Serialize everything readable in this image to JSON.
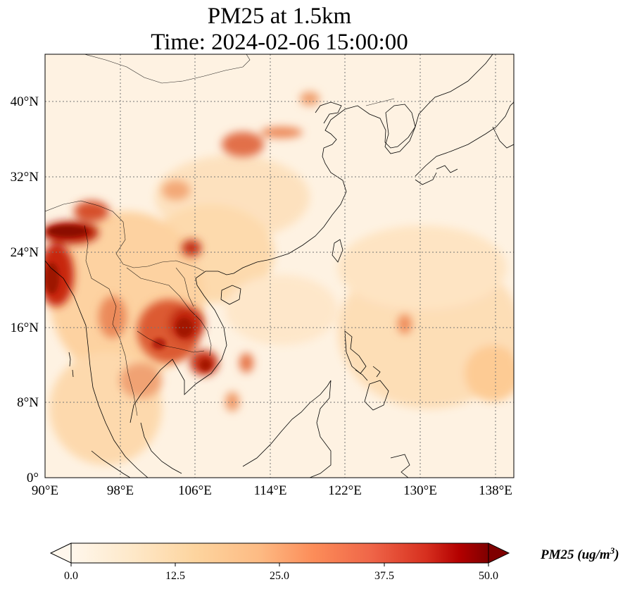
{
  "title": {
    "line1": "PM25 at 1.5km",
    "line2": "Time: 2024-02-06 15:00:00"
  },
  "map": {
    "type": "filled-contour-map",
    "variable": "PM25",
    "level": "1.5km",
    "time": "2024-02-06 15:00:00",
    "lon_range": [
      90,
      140
    ],
    "lat_range": [
      0,
      45
    ],
    "gridlines": "dotted",
    "x_ticks": [
      "90°E",
      "98°E",
      "106°E",
      "114°E",
      "122°E",
      "130°E",
      "138°E"
    ],
    "y_ticks": [
      "0°",
      "8°N",
      "16°N",
      "24°N",
      "32°N",
      "40°N"
    ],
    "x_tick_values": [
      90,
      98,
      106,
      114,
      122,
      130,
      138
    ],
    "y_tick_values": [
      0,
      8,
      16,
      24,
      32,
      40
    ],
    "colormap": "OrRd",
    "colors": {
      "low": "#fff7ec",
      "mid": "#fc8d59",
      "high": "#7f0000"
    }
  },
  "colorbar": {
    "label_text": "PM25 (ug/m",
    "label_sup": "3",
    "label_close": ")",
    "ticks": [
      "0.0",
      "12.5",
      "25.0",
      "37.5",
      "50.0"
    ],
    "tick_values": [
      0,
      12.5,
      25,
      37.5,
      50
    ],
    "vmin": 0,
    "vmax": 50,
    "extend": "both"
  }
}
